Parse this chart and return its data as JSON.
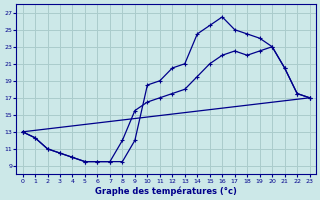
{
  "title": "Graphe des températures (°c)",
  "bg_color": "#cce8e8",
  "grid_color": "#aacccc",
  "line_color": "#00008b",
  "xlim": [
    -0.5,
    23.5
  ],
  "ylim": [
    8,
    28
  ],
  "xticks": [
    0,
    1,
    2,
    3,
    4,
    5,
    6,
    7,
    8,
    9,
    10,
    11,
    12,
    13,
    14,
    15,
    16,
    17,
    18,
    19,
    20,
    21,
    22,
    23
  ],
  "yticks": [
    9,
    11,
    13,
    15,
    17,
    19,
    21,
    23,
    25,
    27
  ],
  "curve1_x": [
    0,
    1,
    2,
    3,
    4,
    5,
    6,
    7,
    8,
    9,
    10,
    11,
    12,
    13,
    14,
    15,
    16,
    17,
    18,
    19,
    20,
    21,
    22,
    23
  ],
  "curve1_y": [
    13.0,
    12.3,
    11.0,
    10.5,
    10.0,
    9.5,
    9.5,
    9.5,
    9.5,
    12.0,
    18.5,
    19.0,
    20.5,
    21.0,
    24.5,
    25.5,
    26.5,
    25.0,
    24.5,
    24.0,
    23.0,
    20.5,
    17.5,
    17.0
  ],
  "curve2_x": [
    0,
    1,
    2,
    3,
    4,
    5,
    6,
    7,
    8,
    9,
    10,
    11,
    12,
    13,
    14,
    15,
    16,
    17,
    18,
    19,
    20,
    21,
    22,
    23
  ],
  "curve2_y": [
    13.0,
    12.3,
    11.0,
    10.5,
    10.0,
    9.5,
    9.5,
    9.5,
    12.0,
    15.5,
    16.5,
    17.0,
    17.5,
    18.0,
    19.5,
    21.0,
    22.0,
    22.5,
    22.0,
    22.5,
    23.0,
    20.5,
    17.5,
    17.0
  ],
  "curve3_x": [
    0,
    23
  ],
  "curve3_y": [
    13.0,
    17.0
  ]
}
